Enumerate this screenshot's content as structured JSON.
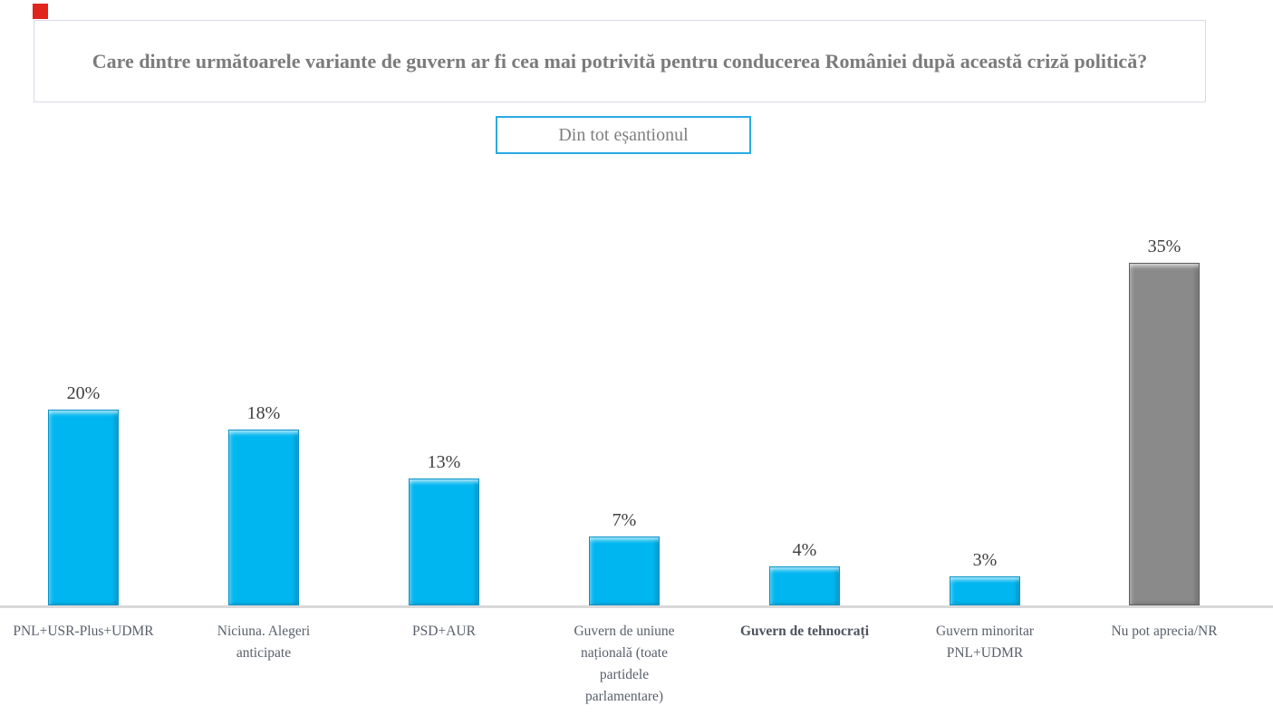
{
  "marker": {
    "color": "#e0251c"
  },
  "header": {
    "question": "Care dintre următoarele variante de guvern ar fi cea mai potrivită pentru conducerea României după această criză politică?"
  },
  "filter_button": {
    "label": "Din tot eșantionul",
    "border_color": "#29abe2"
  },
  "chart_data": {
    "type": "bar",
    "title": "Care dintre următoarele variante de guvern ar fi cea mai potrivită pentru conducerea României după această criză politică?",
    "subtitle": "Din tot eșantionul",
    "categories": [
      "PNL+USR-Plus+UDMR",
      "Niciuna. Alegeri\nanticipate",
      "PSD+AUR",
      "Guvern de uniune\nnațională (toate\npartidele\nparlamentare)",
      "Guvern de tehnocrați",
      "Guvern minoritar\nPNL+UDMR",
      "Nu pot aprecia/NR"
    ],
    "values": [
      20,
      18,
      13,
      7,
      4,
      3,
      35
    ],
    "value_labels": [
      "20%",
      "18%",
      "13%",
      "7%",
      "4%",
      "3%",
      "35%"
    ],
    "colors": [
      "#00b6f0",
      "#00b6f0",
      "#00b6f0",
      "#00b6f0",
      "#00b6f0",
      "#00b6f0",
      "#8a8a8a"
    ],
    "bold_label_index": 4,
    "xlabel": "",
    "ylabel": "",
    "ylim": [
      0,
      40
    ],
    "grid": false,
    "legend": "none",
    "data_labels": "above bars",
    "axis_line_color": "#d9d9d9"
  }
}
